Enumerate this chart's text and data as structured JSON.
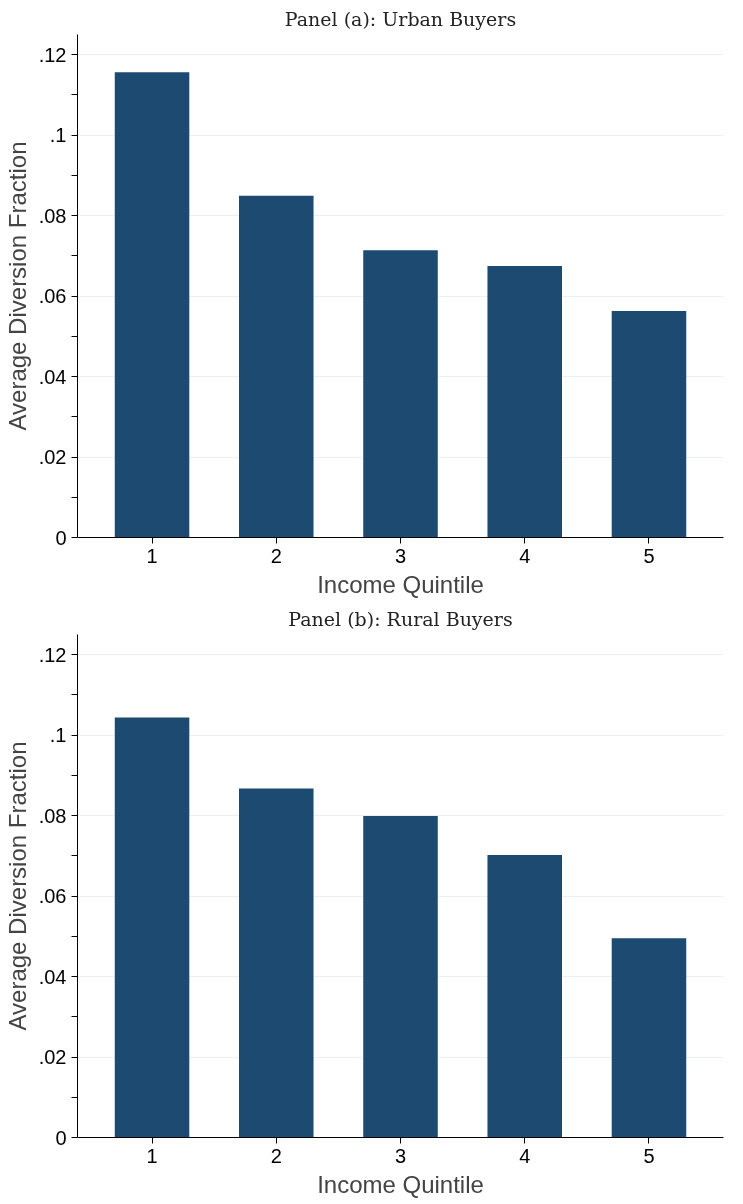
{
  "chart_data": [
    {
      "type": "bar",
      "title": "Panel (a): Urban Buyers",
      "xlabel": "Income Quintile",
      "ylabel": "Average Diversion Fraction",
      "categories": [
        "1",
        "2",
        "3",
        "4",
        "5"
      ],
      "values": [
        0.1156,
        0.0849,
        0.0714,
        0.0675,
        0.0563
      ],
      "color": "#1d4a70",
      "ylim": [
        0,
        0.125
      ],
      "yticks": [
        0,
        {
          "value": 0.01,
          "label": null
        },
        {
          "value": 0.02,
          "label": ".02"
        },
        {
          "value": 0.03,
          "label": null
        },
        {
          "value": 0.04,
          "label": ".04"
        },
        {
          "value": 0.05,
          "label": null
        },
        {
          "value": 0.06,
          "label": ".06"
        },
        {
          "value": 0.07,
          "label": null
        },
        {
          "value": 0.08,
          "label": ".08"
        },
        {
          "value": 0.09,
          "label": null
        },
        {
          "value": 0.1,
          "label": ".1"
        },
        {
          "value": 0.11,
          "label": null
        },
        {
          "value": 0.12,
          "label": ".12"
        }
      ],
      "grid": "y"
    },
    {
      "type": "bar",
      "title": "Panel (b): Rural Buyers",
      "xlabel": "Income Quintile",
      "ylabel": "Average Diversion Fraction",
      "categories": [
        "1",
        "2",
        "3",
        "4",
        "5"
      ],
      "values": [
        0.1044,
        0.0867,
        0.0799,
        0.0702,
        0.0495
      ],
      "color": "#1d4a70",
      "ylim": [
        0,
        0.125
      ],
      "yticks": [
        0,
        {
          "value": 0.01,
          "label": null
        },
        {
          "value": 0.02,
          "label": ".02"
        },
        {
          "value": 0.03,
          "label": null
        },
        {
          "value": 0.04,
          "label": ".04"
        },
        {
          "value": 0.05,
          "label": null
        },
        {
          "value": 0.06,
          "label": ".06"
        },
        {
          "value": 0.07,
          "label": null
        },
        {
          "value": 0.08,
          "label": ".08"
        },
        {
          "value": 0.09,
          "label": null
        },
        {
          "value": 0.1,
          "label": ".1"
        },
        {
          "value": 0.11,
          "label": null
        },
        {
          "value": 0.12,
          "label": ".12"
        }
      ],
      "grid": "y"
    }
  ]
}
